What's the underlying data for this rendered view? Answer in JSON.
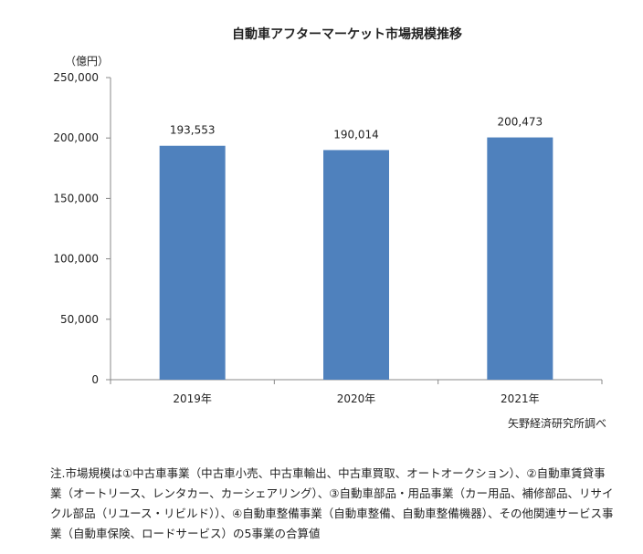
{
  "chart_data": {
    "type": "bar",
    "title": "自動車アフターマーケット市場規模推移",
    "unit_label": "（億円）",
    "categories": [
      "2019年",
      "2020年",
      "2021年"
    ],
    "values": [
      193553,
      190014,
      200473
    ],
    "value_labels": [
      "193,553",
      "190,014",
      "200,473"
    ],
    "ylim": [
      0,
      250000
    ],
    "yticks": [
      0,
      50000,
      100000,
      150000,
      200000,
      250000
    ],
    "ytick_labels": [
      "0",
      "50,000",
      "100,000",
      "150,000",
      "200,000",
      "250,000"
    ],
    "bar_color": "#4f81bd",
    "grid": false,
    "xlabel": "",
    "ylabel": ""
  },
  "source": "矢野経済研究所調べ",
  "note": "注.市場規模は①中古車事業（中古車小売、中古車輸出、中古車買取、オートオークション）、②自動車賃貸事業（オートリース、レンタカー、カーシェアリング）、③自動車部品・用品事業（カー用品、補修部品、リサイクル部品（リユース・リビルド））、④自動車整備事業（自動車整備、自動車整備機器）、その他関連サービス事業（自動車保険、ロードサービス）の5事業の合算値"
}
